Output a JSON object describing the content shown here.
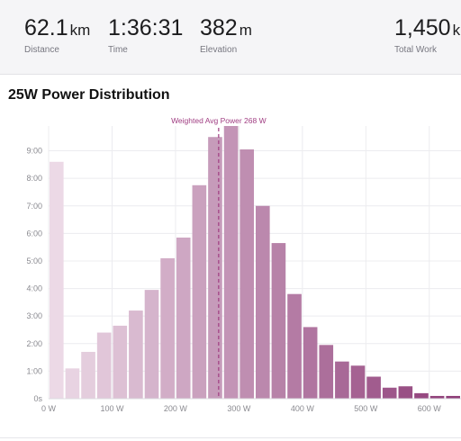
{
  "stats": [
    {
      "value": "62.1",
      "unit": "km",
      "label": "Distance"
    },
    {
      "value": "1:36:31",
      "unit": "",
      "label": "Time"
    },
    {
      "value": "382",
      "unit": "m",
      "label": "Elevation"
    },
    {
      "value": "1,450",
      "unit": "k",
      "label": "Total Work"
    }
  ],
  "chart_title": "25W Power Distribution",
  "chart_data": {
    "type": "bar",
    "bin_width_w": 25,
    "x_tick_labels": [
      "0 W",
      "100 W",
      "200 W",
      "300 W",
      "400 W",
      "500 W",
      "600 W"
    ],
    "x_tick_values": [
      0,
      100,
      200,
      300,
      400,
      500,
      600
    ],
    "y_tick_labels": [
      "0s",
      "1:00",
      "2:00",
      "3:00",
      "4:00",
      "5:00",
      "6:00",
      "7:00",
      "8:00",
      "9:00"
    ],
    "y_tick_values": [
      0,
      1,
      2,
      3,
      4,
      5,
      6,
      7,
      8,
      9
    ],
    "ylim": [
      0,
      9.9
    ],
    "xlim": [
      0,
      650
    ],
    "grid": true,
    "bin_starts": [
      0,
      25,
      50,
      75,
      100,
      125,
      150,
      175,
      200,
      225,
      250,
      275,
      300,
      325,
      350,
      375,
      400,
      425,
      450,
      475,
      500,
      525,
      550,
      575,
      600,
      625
    ],
    "values": [
      8.6,
      1.1,
      1.7,
      2.4,
      2.65,
      3.2,
      3.95,
      5.1,
      5.85,
      7.75,
      9.5,
      9.9,
      9.05,
      7.0,
      5.65,
      3.8,
      2.6,
      1.95,
      1.35,
      1.2,
      0.8,
      0.4,
      0.45,
      0.2,
      0.1,
      0.1
    ],
    "annotation": {
      "label": "Weighted Avg Power 268 W",
      "x": 268
    },
    "colors": {
      "light": "#ecd9e6",
      "dark": "#8e3d78",
      "annotation": "#a03d82",
      "grid": "#ececef",
      "axis_text": "#8a8a90"
    }
  }
}
